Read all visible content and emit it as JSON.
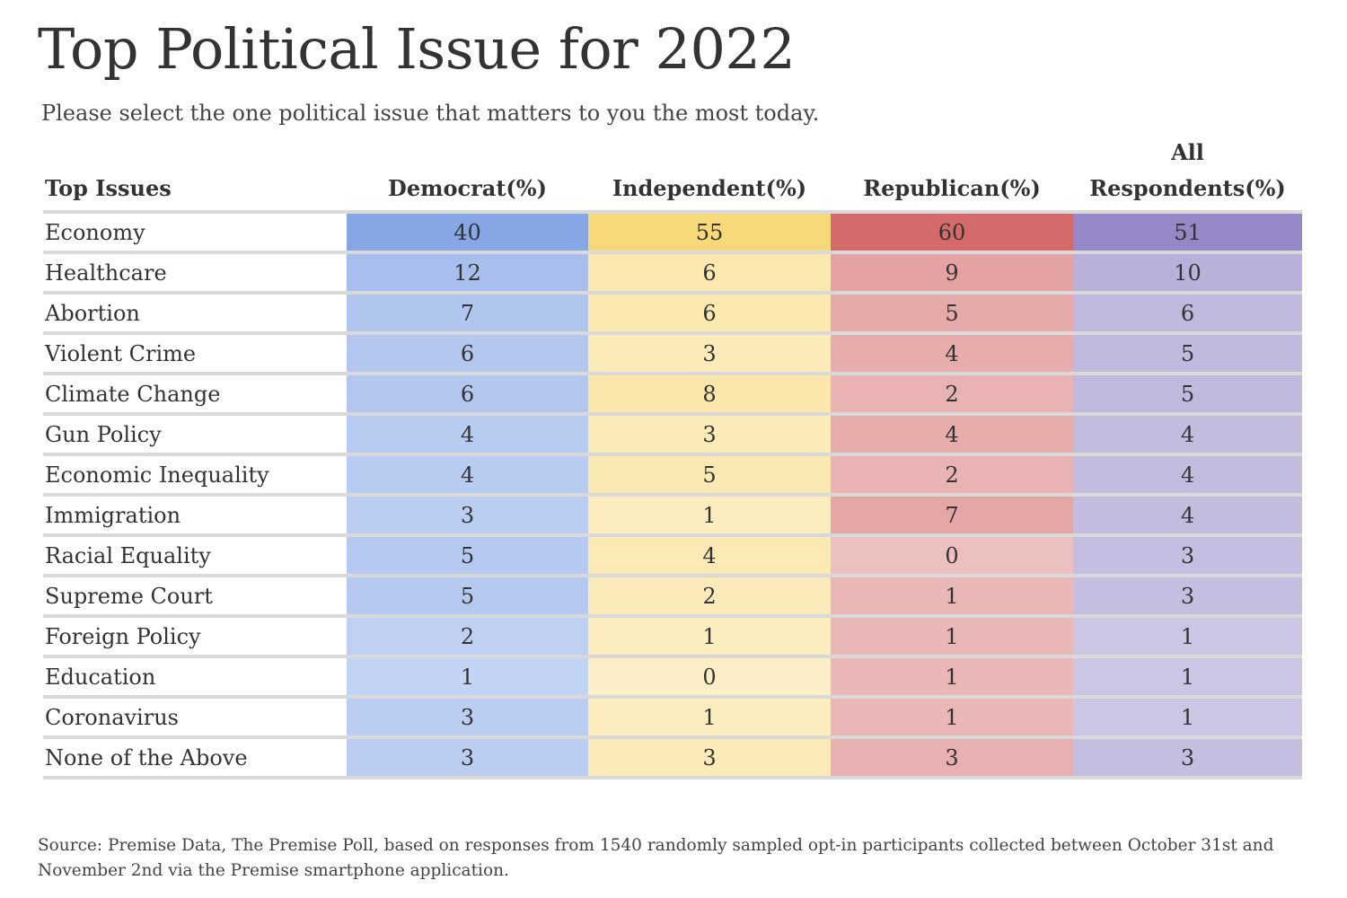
{
  "title": "Top Political Issue for 2022",
  "subtitle": "Please select the one political issue that matters to you the most today.",
  "source": "Source: Premise Data, The Premise Poll, based on responses from 1540 randomly sampled opt-in participants collected between October 31st and November 2nd via the Premise smartphone application.",
  "colors": {
    "democrat": "#86a6e6",
    "independent": "#f8d97a",
    "republican": "#d46a6a",
    "all": "#9688c6"
  },
  "chart_data": {
    "type": "table",
    "title": "Top Political Issue for 2022",
    "subtitle": "Please select the one political issue that matters to you the most today.",
    "columns": [
      "Top Issues",
      "Democrat(%)",
      "Independent(%)",
      "Republican(%)",
      "All Respondents(%)"
    ],
    "header_lines": [
      [
        "Top Issues"
      ],
      [
        "Democrat(%)"
      ],
      [
        "Independent(%)"
      ],
      [
        "Republican(%)"
      ],
      [
        "All",
        "Respondents(%)"
      ]
    ],
    "rows": [
      {
        "issue": "Economy",
        "values": [
          40,
          55,
          60,
          51
        ]
      },
      {
        "issue": "Healthcare",
        "values": [
          12,
          6,
          9,
          10
        ]
      },
      {
        "issue": "Abortion",
        "values": [
          7,
          6,
          5,
          6
        ]
      },
      {
        "issue": "Violent Crime",
        "values": [
          6,
          3,
          4,
          5
        ]
      },
      {
        "issue": "Climate Change",
        "values": [
          6,
          8,
          2,
          5
        ]
      },
      {
        "issue": "Gun Policy",
        "values": [
          4,
          3,
          4,
          4
        ]
      },
      {
        "issue": "Economic Inequality",
        "values": [
          4,
          5,
          2,
          4
        ]
      },
      {
        "issue": "Immigration",
        "values": [
          3,
          1,
          7,
          4
        ]
      },
      {
        "issue": "Racial Equality",
        "values": [
          5,
          4,
          0,
          3
        ]
      },
      {
        "issue": "Supreme Court",
        "values": [
          5,
          2,
          1,
          3
        ]
      },
      {
        "issue": "Foreign Policy",
        "values": [
          2,
          1,
          1,
          1
        ]
      },
      {
        "issue": "Education",
        "values": [
          1,
          0,
          1,
          1
        ]
      },
      {
        "issue": "Coronavirus",
        "values": [
          3,
          1,
          1,
          1
        ]
      },
      {
        "issue": "None of the Above",
        "values": [
          3,
          3,
          3,
          3
        ]
      }
    ]
  }
}
